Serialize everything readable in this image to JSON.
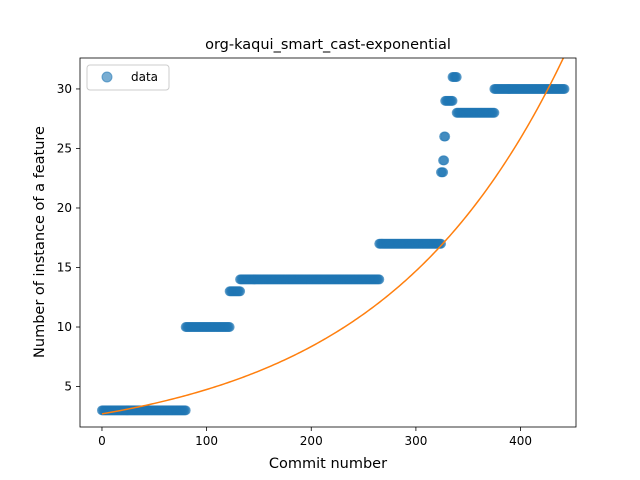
{
  "chart_data": {
    "type": "scatter",
    "title": "org-kaqui_smart_cast-exponential",
    "xlabel": "Commit number",
    "ylabel": "Number of instance of a feature",
    "xlim": [
      -21,
      453
    ],
    "ylim": [
      1.6,
      32.6
    ],
    "xticks": [
      0,
      100,
      200,
      300,
      400
    ],
    "yticks": [
      5,
      10,
      15,
      20,
      25,
      30
    ],
    "grid": false,
    "legend": {
      "placement": "top-left",
      "entries": [
        "data"
      ]
    },
    "colors": {
      "data": "#1f77b4",
      "fit": "#ff7f0e"
    },
    "series": [
      {
        "name": "data",
        "kind": "scatter",
        "steps": [
          {
            "x_start": 0,
            "x_end": 80,
            "y": 3
          },
          {
            "x_start": 80,
            "x_end": 122,
            "y": 10
          },
          {
            "x_start": 122,
            "x_end": 132,
            "y": 13
          },
          {
            "x_start": 132,
            "x_end": 265,
            "y": 14
          },
          {
            "x_start": 265,
            "x_end": 324,
            "y": 17
          },
          {
            "x_start": 324,
            "x_end": 326,
            "y": 23
          },
          {
            "x_start": 326,
            "x_end": 327,
            "y": 24
          },
          {
            "x_start": 327,
            "x_end": 328,
            "y": 26
          },
          {
            "x_start": 328,
            "x_end": 335,
            "y": 29
          },
          {
            "x_start": 335,
            "x_end": 339,
            "y": 31
          },
          {
            "x_start": 339,
            "x_end": 375,
            "y": 28
          },
          {
            "x_start": 375,
            "x_end": 442,
            "y": 30
          }
        ]
      },
      {
        "name": "",
        "kind": "line",
        "model": "exponential",
        "y_at_x0": 2.7,
        "x_end": 442,
        "y_at_x_end": 32.8
      }
    ]
  }
}
